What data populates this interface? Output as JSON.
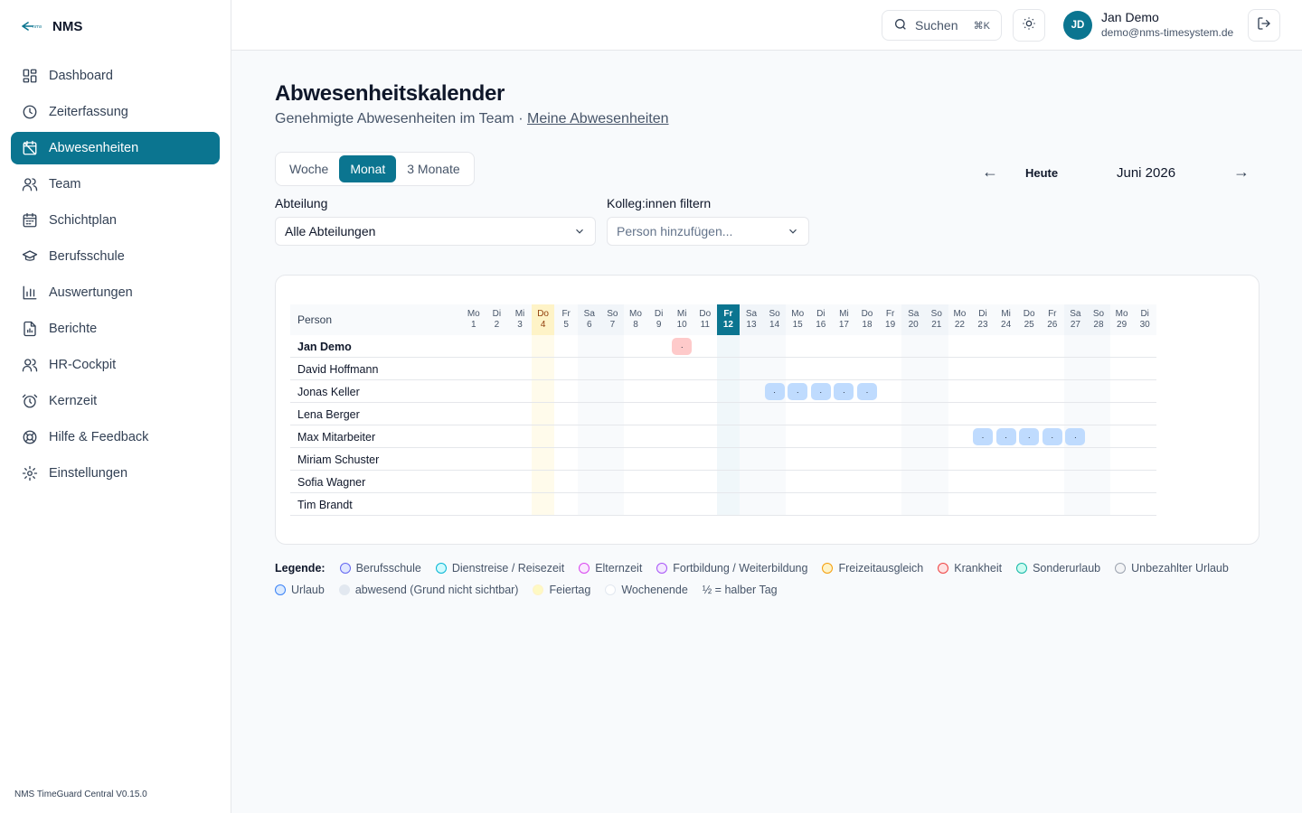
{
  "app": {
    "name": "NMS",
    "version": "NMS TimeGuard Central V0.15.0"
  },
  "sidebar": {
    "items": [
      {
        "label": "Dashboard",
        "icon": "dashboard-icon",
        "active": false
      },
      {
        "label": "Zeiterfassung",
        "icon": "clock-icon",
        "active": false
      },
      {
        "label": "Abwesenheiten",
        "icon": "calendar-off-icon",
        "active": true
      },
      {
        "label": "Team",
        "icon": "users-icon",
        "active": false
      },
      {
        "label": "Schichtplan",
        "icon": "calendar-icon",
        "active": false
      },
      {
        "label": "Berufsschule",
        "icon": "graduation-cap-icon",
        "active": false
      },
      {
        "label": "Auswertungen",
        "icon": "bar-chart-icon",
        "active": false
      },
      {
        "label": "Berichte",
        "icon": "file-chart-icon",
        "active": false
      },
      {
        "label": "HR-Cockpit",
        "icon": "users-icon",
        "active": false
      },
      {
        "label": "Kernzeit",
        "icon": "alarm-clock-icon",
        "active": false
      },
      {
        "label": "Hilfe & Feedback",
        "icon": "life-buoy-icon",
        "active": false
      },
      {
        "label": "Einstellungen",
        "icon": "gear-icon",
        "active": false
      }
    ]
  },
  "topbar": {
    "search_label": "Suchen",
    "search_shortcut": "⌘K",
    "user": {
      "initials": "JD",
      "name": "Jan Demo",
      "email": "demo@nms-timesystem.de"
    }
  },
  "page": {
    "title": "Abwesenheitskalender",
    "subtitle": "Genehmigte Abwesenheiten im Team ·",
    "subtitle_link": "Meine Abwesenheiten"
  },
  "view": {
    "options": [
      "Woche",
      "Monat",
      "3 Monate"
    ],
    "active": "Monat",
    "today_label": "Heute",
    "month_label": "Juni 2026",
    "prev": "←",
    "next": "→"
  },
  "filters": {
    "department_label": "Abteilung",
    "department_value": "Alle Abteilungen",
    "colleague_label": "Kolleg:innen filtern",
    "colleague_placeholder": "Person hinzufügen..."
  },
  "calendar": {
    "person_header": "Person",
    "today_day": 12,
    "holidays": [
      4
    ],
    "days": [
      {
        "wd": "Mo",
        "d": 1
      },
      {
        "wd": "Di",
        "d": 2
      },
      {
        "wd": "Mi",
        "d": 3
      },
      {
        "wd": "Do",
        "d": 4
      },
      {
        "wd": "Fr",
        "d": 5
      },
      {
        "wd": "Sa",
        "d": 6
      },
      {
        "wd": "So",
        "d": 7
      },
      {
        "wd": "Mo",
        "d": 8
      },
      {
        "wd": "Di",
        "d": 9
      },
      {
        "wd": "Mi",
        "d": 10
      },
      {
        "wd": "Do",
        "d": 11
      },
      {
        "wd": "Fr",
        "d": 12
      },
      {
        "wd": "Sa",
        "d": 13
      },
      {
        "wd": "So",
        "d": 14
      },
      {
        "wd": "Mo",
        "d": 15
      },
      {
        "wd": "Di",
        "d": 16
      },
      {
        "wd": "Mi",
        "d": 17
      },
      {
        "wd": "Do",
        "d": 18
      },
      {
        "wd": "Fr",
        "d": 19
      },
      {
        "wd": "Sa",
        "d": 20
      },
      {
        "wd": "So",
        "d": 21
      },
      {
        "wd": "Mo",
        "d": 22
      },
      {
        "wd": "Di",
        "d": 23
      },
      {
        "wd": "Mi",
        "d": 24
      },
      {
        "wd": "Do",
        "d": 25
      },
      {
        "wd": "Fr",
        "d": 26
      },
      {
        "wd": "Sa",
        "d": 27
      },
      {
        "wd": "So",
        "d": 28
      },
      {
        "wd": "Mo",
        "d": 29
      },
      {
        "wd": "Di",
        "d": 30
      }
    ],
    "people": [
      {
        "name": "Jan Demo",
        "me": true,
        "absences": [
          {
            "day": 10,
            "type": "sick",
            "mark": "·"
          }
        ]
      },
      {
        "name": "David Hoffmann",
        "me": false,
        "absences": []
      },
      {
        "name": "Jonas Keller",
        "me": false,
        "absences": [
          {
            "day": 14,
            "type": "vac",
            "mark": "·"
          },
          {
            "day": 15,
            "type": "vac",
            "mark": "·"
          },
          {
            "day": 16,
            "type": "vac",
            "mark": "·"
          },
          {
            "day": 17,
            "type": "vac",
            "mark": "·"
          },
          {
            "day": 18,
            "type": "vac",
            "mark": "·"
          }
        ]
      },
      {
        "name": "Lena Berger",
        "me": false,
        "absences": []
      },
      {
        "name": "Max Mitarbeiter",
        "me": false,
        "absences": [
          {
            "day": 23,
            "type": "vac",
            "mark": "·"
          },
          {
            "day": 24,
            "type": "vac",
            "mark": "·"
          },
          {
            "day": 25,
            "type": "vac",
            "mark": "·"
          },
          {
            "day": 26,
            "type": "vac",
            "mark": "·"
          },
          {
            "day": 27,
            "type": "vac",
            "mark": "·"
          }
        ]
      },
      {
        "name": "Miriam Schuster",
        "me": false,
        "absences": []
      },
      {
        "name": "Sofia Wagner",
        "me": false,
        "absences": []
      },
      {
        "name": "Tim Brandt",
        "me": false,
        "absences": []
      }
    ]
  },
  "legend": {
    "title": "Legende:",
    "items": [
      {
        "label": "Berufsschule",
        "border": "#6366f1",
        "fill": "#e0e7ff"
      },
      {
        "label": "Dienstreise / Reisezeit",
        "border": "#06b6d4",
        "fill": "#cffafe"
      },
      {
        "label": "Elternzeit",
        "border": "#d946ef",
        "fill": "#fae8ff"
      },
      {
        "label": "Fortbildung / Weiterbildung",
        "border": "#a855f7",
        "fill": "#f3e8ff"
      },
      {
        "label": "Freizeitausgleich",
        "border": "#f59e0b",
        "fill": "#fef3c7"
      },
      {
        "label": "Krankheit",
        "border": "#ef4444",
        "fill": "#fee2e2"
      },
      {
        "label": "Sonderurlaub",
        "border": "#14b8a6",
        "fill": "#ccfbf1"
      },
      {
        "label": "Unbezahlter Urlaub",
        "border": "#9ca3af",
        "fill": "#f3f4f6"
      }
    ],
    "items2": [
      {
        "label": "Urlaub",
        "border": "#3b82f6",
        "fill": "#dbeafe"
      },
      {
        "label": "abwesend (Grund nicht sichtbar)",
        "border": "#e2e8f0",
        "fill": "#e2e8f0"
      },
      {
        "label": "Feiertag",
        "border": "#fef3c7",
        "fill": "#fef9c3"
      },
      {
        "label": "Wochenende",
        "border": "#e2e8f0",
        "fill": "#ffffff"
      }
    ],
    "half_day": "½ = halber Tag"
  }
}
